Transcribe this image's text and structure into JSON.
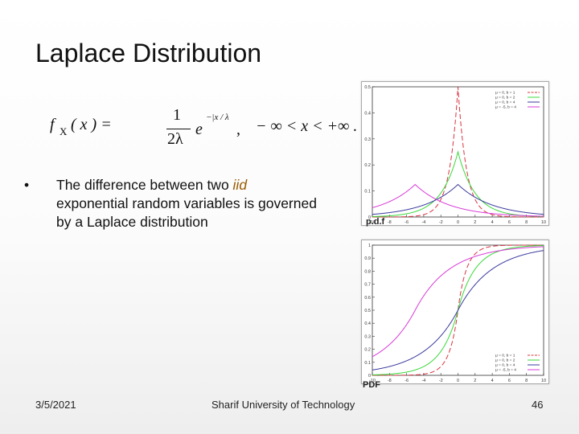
{
  "slide": {
    "title": "Laplace Distribution",
    "formula": {
      "lhs": "f",
      "lhs_sub": "X",
      "lhs_arg": "( x ) =",
      "numerator": "1",
      "denominator": "2λ",
      "base": "e",
      "exponent": "−|x / λ",
      "comma": ",",
      "domain": "− ∞  <  x  <  +∞ ."
    },
    "bullet": {
      "before": "The difference between two ",
      "emphasis": "iid",
      "after": " exponential random variables is governed by a Laplace distribution"
    }
  },
  "footer": {
    "date": "3/5/2021",
    "institution": "Sharif University of Technology",
    "page_number": "46"
  },
  "chart_data": [
    {
      "type": "line",
      "caption": "p.d.f",
      "xlim": [
        -10,
        10
      ],
      "ylim": [
        0,
        0.5
      ],
      "x_ticks": [
        "-10",
        "-8",
        "-6",
        "-4",
        "-2",
        "0",
        "2",
        "4",
        "6",
        "8",
        "10"
      ],
      "y_ticks": [
        "0",
        "0.1",
        "0.2",
        "0.3",
        "0.4",
        "0.5"
      ],
      "legend": "top-right",
      "series": [
        {
          "name": "μ = 0, b = 1",
          "mu": 0,
          "b": 1,
          "color": "#d8343f",
          "dash": "6,3"
        },
        {
          "name": "μ = 0, b = 2",
          "mu": 0,
          "b": 2,
          "color": "#3bd83b",
          "dash": ""
        },
        {
          "name": "μ = 0, b = 4",
          "mu": 0,
          "b": 4,
          "color": "#3b3b9e",
          "dash": ""
        },
        {
          "name": "μ = -5, b = 4",
          "mu": -5,
          "b": 4,
          "color": "#d83bd8",
          "dash": ""
        }
      ]
    },
    {
      "type": "line",
      "caption": "PDF",
      "xlim": [
        -10,
        10
      ],
      "ylim": [
        0,
        1
      ],
      "x_ticks": [
        "-10",
        "-8",
        "-6",
        "-4",
        "-2",
        "0",
        "2",
        "4",
        "6",
        "8",
        "10"
      ],
      "y_ticks": [
        "0",
        "0.1",
        "0.2",
        "0.3",
        "0.4",
        "0.5",
        "0.6",
        "0.7",
        "0.8",
        "0.9",
        "1"
      ],
      "legend": "bottom-right",
      "series": [
        {
          "name": "μ = 0, b = 1",
          "mu": 0,
          "b": 1,
          "color": "#d8343f",
          "dash": "6,3"
        },
        {
          "name": "μ = 0, b = 2",
          "mu": 0,
          "b": 2,
          "color": "#3bd83b",
          "dash": ""
        },
        {
          "name": "μ = 0, b = 4",
          "mu": 0,
          "b": 4,
          "color": "#3b3b9e",
          "dash": ""
        },
        {
          "name": "μ = -5, b = 4",
          "mu": -5,
          "b": 4,
          "color": "#d83bd8",
          "dash": ""
        }
      ]
    }
  ]
}
